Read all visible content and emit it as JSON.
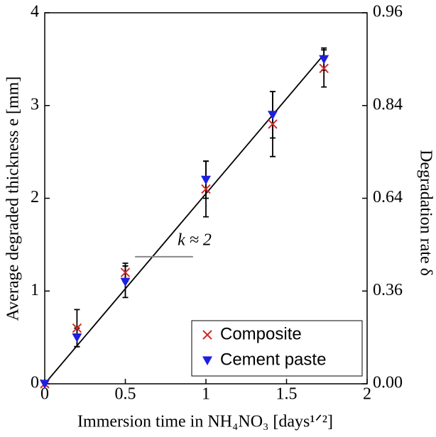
{
  "chart_data": {
    "type": "scatter",
    "xlabel": "Immersion time in NH₄NO₃ [days¹ᐟ²]",
    "ylabel": "Average degraded thickness e [mm]",
    "y2label": "Degradation rate δ",
    "xlim": [
      0,
      2
    ],
    "xticks": [
      0,
      0.5,
      1,
      1.5,
      2
    ],
    "ylim": [
      0,
      4
    ],
    "yticks": [
      0,
      1,
      2,
      3,
      4
    ],
    "y2lim": [
      0,
      0.96
    ],
    "y2ticks": [
      {
        "value": 0,
        "label": "0.00"
      },
      0.36,
      0.64,
      0.84,
      0.96
    ],
    "x": [
      0,
      0.2,
      0.5,
      1,
      1.414,
      1.732
    ],
    "series": [
      {
        "name": "Composite",
        "color": "#d62728",
        "marker": "x",
        "values": [
          0,
          0.6,
          1.2,
          2.1,
          2.8,
          3.4
        ],
        "errors": [
          0,
          0.2,
          0.1,
          0.3,
          0.35,
          0.2
        ]
      },
      {
        "name": "Cement paste",
        "color": "#1f1fe0",
        "marker": "v",
        "values": [
          0,
          0.5,
          1.1,
          2.2,
          2.9,
          3.5
        ],
        "errors": [
          0,
          0.1,
          0.17,
          0.2,
          0.25,
          0.12
        ]
      }
    ],
    "fit": {
      "x": [
        0,
        1.732
      ],
      "values": [
        0,
        3.55
      ],
      "color": "#000000"
    },
    "annotation": {
      "text": "k ≈ 2",
      "x": [
        0.56,
        0.92
      ],
      "y": 1.37
    },
    "legend": "lower right"
  }
}
